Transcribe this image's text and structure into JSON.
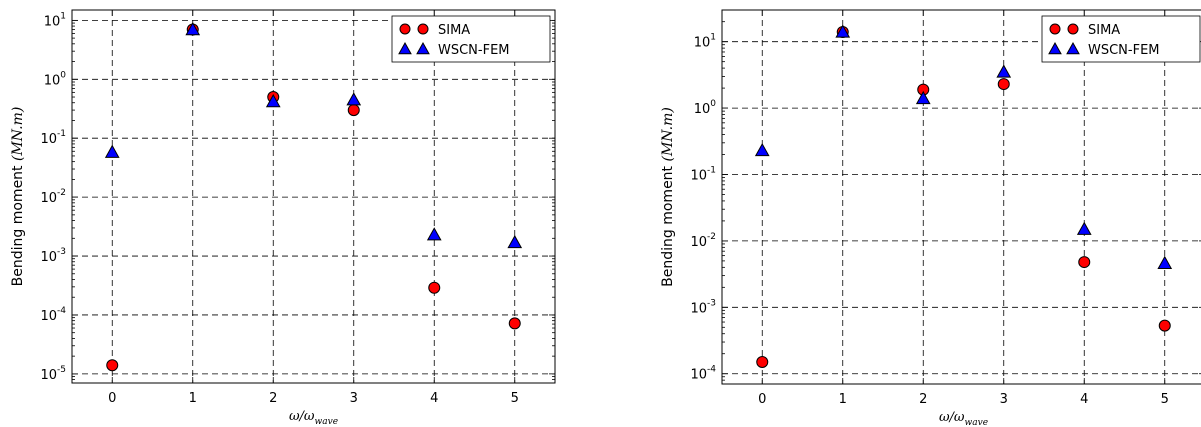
{
  "chart_data": [
    {
      "type": "scatter",
      "scale_y": "log",
      "ylabel": "Bending moment",
      "ylabel_unit": "(MN.m)",
      "xlabel": "ω/ω",
      "xlabel_sub": "wave",
      "x_ticks": [
        "0",
        "1",
        "2",
        "3",
        "4",
        "5"
      ],
      "y_tick_base": "10",
      "y_tick_exps": [
        "-5",
        "-4",
        "-3",
        "-2",
        "-1",
        "0",
        "1"
      ],
      "xlim": [
        -0.5,
        5.5
      ],
      "ylim": [
        7e-06,
        15
      ],
      "grid": true,
      "legend_position": "top-right",
      "x": [
        0,
        1,
        2,
        3,
        4,
        5
      ],
      "series": [
        {
          "name": "SIMA",
          "marker": "circle",
          "color": "#ff0000",
          "values": [
            1.4e-05,
            7.0,
            0.5,
            0.3,
            0.00029,
            7.2e-05
          ]
        },
        {
          "name": "WSCN-FEM",
          "marker": "triangle",
          "color": "#0000ff",
          "values": [
            0.058,
            7.0,
            0.42,
            0.45,
            0.0023,
            0.0017
          ]
        }
      ]
    },
    {
      "type": "scatter",
      "scale_y": "log",
      "ylabel": "Bending moment",
      "ylabel_unit": "(MN.m)",
      "xlabel": "ω/ω",
      "xlabel_sub": "wave",
      "x_ticks": [
        "0",
        "1",
        "2",
        "3",
        "4",
        "5"
      ],
      "y_tick_base": "10",
      "y_tick_exps": [
        "-4",
        "-3",
        "-2",
        "-1",
        "0",
        "1"
      ],
      "xlim": [
        -0.5,
        5.5
      ],
      "ylim": [
        7e-05,
        30
      ],
      "grid": true,
      "legend_position": "top-right",
      "x": [
        0,
        1,
        2,
        3,
        4,
        5
      ],
      "series": [
        {
          "name": "SIMA",
          "marker": "circle",
          "color": "#ff0000",
          "values": [
            0.00015,
            14,
            1.9,
            2.3,
            0.0048,
            0.00053
          ]
        },
        {
          "name": "WSCN-FEM",
          "marker": "triangle",
          "color": "#0000ff",
          "values": [
            0.23,
            14,
            1.4,
            3.5,
            0.015,
            0.0046
          ]
        }
      ]
    }
  ]
}
